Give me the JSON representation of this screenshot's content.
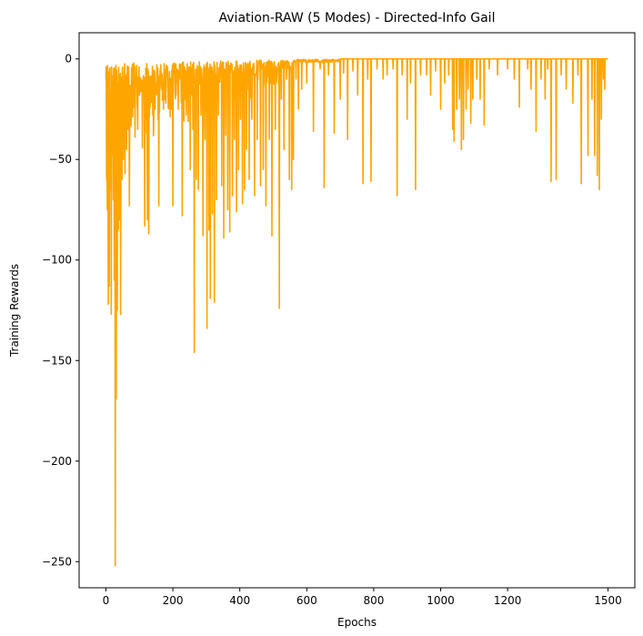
{
  "chart_data": {
    "type": "line",
    "title": "Aviation-RAW (5 Modes) - Directed-Info Gail",
    "xlabel": "Epochs",
    "ylabel": "Training Rewards",
    "xlim": [
      -80,
      1580
    ],
    "ylim": [
      -263,
      13
    ],
    "grid": false,
    "legend": "none",
    "x_ticks": [
      0,
      200,
      400,
      600,
      800,
      1000,
      1200,
      1500
    ],
    "x_tick_labels": [
      "0",
      "200",
      "400",
      "600",
      "800",
      "1000",
      "1200",
      "1500"
    ],
    "y_ticks": [
      0,
      -50,
      -100,
      -150,
      -200,
      -250
    ],
    "y_tick_labels": [
      "0",
      "−50",
      "−100",
      "−150",
      "−200",
      "−250"
    ],
    "series": [
      {
        "color": "#FFA500",
        "x_range": [
          0,
          1500
        ],
        "baseline_segments": [
          {
            "from": 0,
            "to": 150,
            "level": -10
          },
          {
            "from": 150,
            "to": 300,
            "level": -7
          },
          {
            "from": 300,
            "to": 450,
            "level": -5
          },
          {
            "from": 450,
            "to": 560,
            "level": -3
          },
          {
            "from": 560,
            "to": 700,
            "level": -1
          },
          {
            "from": 700,
            "to": 1500,
            "level": 0
          }
        ],
        "spikes": [
          [
            2,
            -60
          ],
          [
            4,
            -75
          ],
          [
            7,
            -122
          ],
          [
            10,
            -113
          ],
          [
            13,
            -65
          ],
          [
            16,
            -127
          ],
          [
            19,
            -48
          ],
          [
            22,
            -70
          ],
          [
            25,
            -110
          ],
          [
            28,
            -252
          ],
          [
            31,
            -169
          ],
          [
            34,
            -125
          ],
          [
            37,
            -85
          ],
          [
            40,
            -80
          ],
          [
            44,
            -127
          ],
          [
            48,
            -60
          ],
          [
            52,
            -50
          ],
          [
            57,
            -57
          ],
          [
            62,
            -45
          ],
          [
            66,
            -35
          ],
          [
            70,
            -73
          ],
          [
            78,
            -25
          ],
          [
            85,
            -20
          ],
          [
            93,
            -22
          ],
          [
            100,
            -18
          ],
          [
            110,
            -14
          ],
          [
            116,
            -83
          ],
          [
            120,
            -30
          ],
          [
            124,
            -80
          ],
          [
            128,
            -87
          ],
          [
            134,
            -20
          ],
          [
            140,
            -28
          ],
          [
            147,
            -25
          ],
          [
            154,
            -18
          ],
          [
            158,
            -73
          ],
          [
            166,
            -15
          ],
          [
            172,
            -25
          ],
          [
            180,
            -12
          ],
          [
            188,
            -20
          ],
          [
            200,
            -73
          ],
          [
            210,
            -18
          ],
          [
            216,
            -25
          ],
          [
            228,
            -78
          ],
          [
            236,
            -20
          ],
          [
            244,
            -12
          ],
          [
            252,
            -55
          ],
          [
            260,
            -35
          ],
          [
            264,
            -146
          ],
          [
            270,
            -60
          ],
          [
            276,
            -65
          ],
          [
            284,
            -28
          ],
          [
            290,
            -88
          ],
          [
            296,
            -40
          ],
          [
            302,
            -134
          ],
          [
            308,
            -85
          ],
          [
            312,
            -119
          ],
          [
            318,
            -77
          ],
          [
            324,
            -121
          ],
          [
            330,
            -70
          ],
          [
            336,
            -28
          ],
          [
            346,
            -63
          ],
          [
            352,
            -89
          ],
          [
            358,
            -38
          ],
          [
            364,
            -75
          ],
          [
            370,
            -86
          ],
          [
            378,
            -68
          ],
          [
            384,
            -40
          ],
          [
            390,
            -76
          ],
          [
            396,
            -55
          ],
          [
            402,
            -30
          ],
          [
            408,
            -72
          ],
          [
            414,
            -65
          ],
          [
            420,
            -45
          ],
          [
            428,
            -60
          ],
          [
            436,
            -30
          ],
          [
            444,
            -68
          ],
          [
            452,
            -40
          ],
          [
            462,
            -63
          ],
          [
            470,
            -55
          ],
          [
            478,
            -73
          ],
          [
            488,
            -40
          ],
          [
            496,
            -88
          ],
          [
            506,
            -35
          ],
          [
            518,
            -124
          ],
          [
            524,
            -20
          ],
          [
            532,
            -45
          ],
          [
            540,
            -10
          ],
          [
            548,
            -60
          ],
          [
            555,
            -65
          ],
          [
            560,
            -50
          ],
          [
            568,
            -10
          ],
          [
            575,
            -25
          ],
          [
            585,
            -15
          ],
          [
            600,
            -12
          ],
          [
            620,
            -36
          ],
          [
            640,
            -5
          ],
          [
            652,
            -64
          ],
          [
            665,
            -8
          ],
          [
            682,
            -37
          ],
          [
            700,
            -20
          ],
          [
            710,
            -7
          ],
          [
            722,
            -40
          ],
          [
            738,
            -6
          ],
          [
            752,
            -18
          ],
          [
            768,
            -62
          ],
          [
            782,
            -10
          ],
          [
            792,
            -61
          ],
          [
            810,
            -5
          ],
          [
            828,
            -10
          ],
          [
            840,
            -8
          ],
          [
            858,
            -5
          ],
          [
            870,
            -68
          ],
          [
            885,
            -8
          ],
          [
            900,
            -30
          ],
          [
            910,
            -12
          ],
          [
            925,
            -65
          ],
          [
            940,
            -8
          ],
          [
            958,
            -8
          ],
          [
            970,
            -18
          ],
          [
            985,
            -6
          ],
          [
            1000,
            -25
          ],
          [
            1012,
            -12
          ],
          [
            1024,
            -8
          ],
          [
            1036,
            -35
          ],
          [
            1040,
            -41
          ],
          [
            1048,
            -25
          ],
          [
            1056,
            -20
          ],
          [
            1062,
            -45
          ],
          [
            1068,
            -40
          ],
          [
            1076,
            -25
          ],
          [
            1082,
            -15
          ],
          [
            1090,
            -32
          ],
          [
            1096,
            -20
          ],
          [
            1108,
            -10
          ],
          [
            1118,
            -20
          ],
          [
            1130,
            -33
          ],
          [
            1145,
            -5
          ],
          [
            1170,
            -8
          ],
          [
            1200,
            -5
          ],
          [
            1220,
            -10
          ],
          [
            1235,
            -24
          ],
          [
            1260,
            -5
          ],
          [
            1270,
            -15
          ],
          [
            1285,
            -36
          ],
          [
            1300,
            -10
          ],
          [
            1312,
            -20
          ],
          [
            1320,
            -5
          ],
          [
            1330,
            -61
          ],
          [
            1345,
            -60
          ],
          [
            1360,
            -8
          ],
          [
            1375,
            -15
          ],
          [
            1395,
            -22
          ],
          [
            1410,
            -8
          ],
          [
            1420,
            -62
          ],
          [
            1440,
            -48
          ],
          [
            1452,
            -20
          ],
          [
            1460,
            -48
          ],
          [
            1468,
            -58
          ],
          [
            1474,
            -65
          ],
          [
            1480,
            -30
          ],
          [
            1486,
            -10
          ],
          [
            1490,
            -15
          ]
        ]
      }
    ]
  }
}
